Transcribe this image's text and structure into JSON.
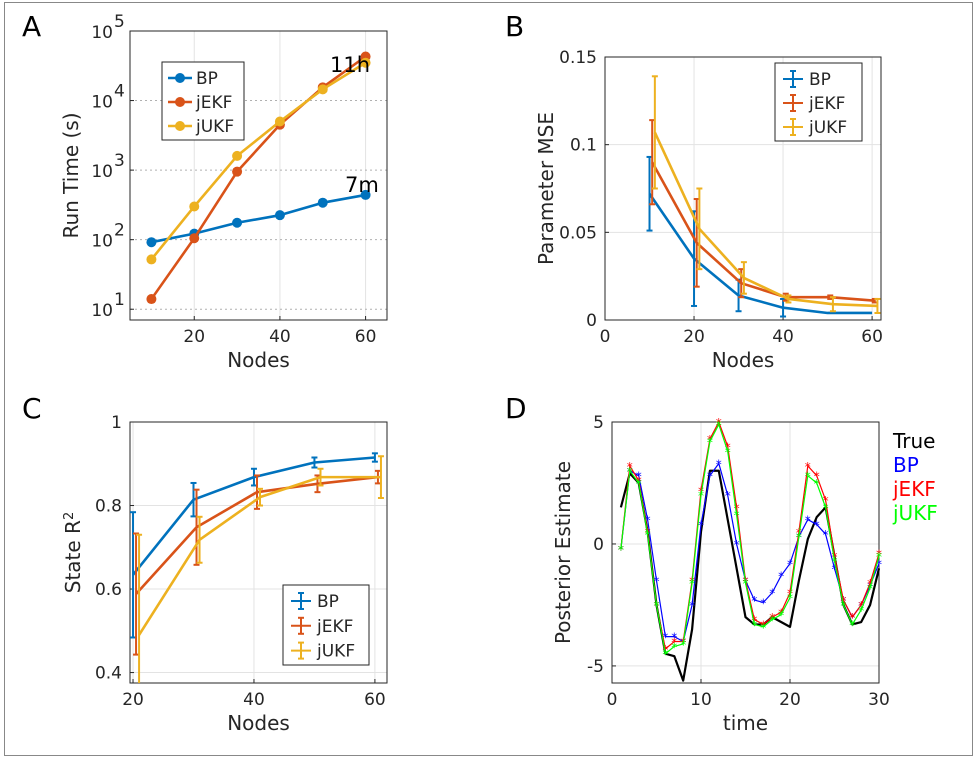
{
  "chart_data": [
    {
      "panel": "A",
      "type": "line",
      "xlabel": "Nodes",
      "ylabel": "Run Time (s)",
      "yscale": "log",
      "xlim": [
        5,
        65
      ],
      "ylim": [
        7,
        100000
      ],
      "xticks": [
        20,
        40,
        60
      ],
      "yticks": [
        10,
        100,
        1000,
        10000,
        100000
      ],
      "ytick_labels": [
        [
          "10",
          "1"
        ],
        [
          "10",
          "2"
        ],
        [
          "10",
          "3"
        ],
        [
          "10",
          "4"
        ],
        [
          "10",
          "5"
        ]
      ],
      "grid": "vertical + dotted minor on log decades",
      "legend": "top-left",
      "series": [
        {
          "name": "BP",
          "color": "#0072BD",
          "x": [
            10,
            20,
            30,
            40,
            50,
            60
          ],
          "y": [
            92,
            122,
            175,
            225,
            340,
            440
          ]
        },
        {
          "name": "jEKF",
          "color": "#D95319",
          "x": [
            10,
            20,
            30,
            40,
            50,
            60
          ],
          "y": [
            14,
            105,
            950,
            4500,
            15500,
            43000
          ]
        },
        {
          "name": "jUKF",
          "color": "#EDB120",
          "x": [
            10,
            20,
            30,
            40,
            50,
            60
          ],
          "y": [
            52,
            300,
            1600,
            5000,
            14500,
            35000
          ]
        }
      ],
      "annotations": [
        {
          "text": "11h",
          "x": 53,
          "y": 60000
        },
        {
          "text": "7m",
          "x": 54,
          "y": 700
        }
      ]
    },
    {
      "panel": "B",
      "type": "line",
      "xlabel": "Nodes",
      "ylabel": "Parameter MSE",
      "xlim": [
        0,
        62
      ],
      "ylim": [
        0,
        0.15
      ],
      "xticks": [
        0,
        20,
        40,
        60
      ],
      "yticks": [
        0,
        0.05,
        0.1,
        0.15
      ],
      "ytick_labels": [
        "0",
        "0.05",
        "0.1",
        "0.15"
      ],
      "grid": "on",
      "legend": "top-right",
      "series": [
        {
          "name": "BP",
          "color": "#0072BD",
          "x": [
            10,
            20,
            30,
            40,
            50,
            60
          ],
          "y": [
            0.072,
            0.035,
            0.014,
            0.007,
            0.004,
            0.004
          ],
          "err": [
            0.021,
            0.027,
            0.009,
            0.005,
            0,
            0
          ]
        },
        {
          "name": "jEKF",
          "color": "#D95319",
          "x": [
            10.6,
            20.6,
            30.6,
            40.6,
            50.6,
            60.6
          ],
          "y": [
            0.09,
            0.044,
            0.021,
            0.013,
            0.013,
            0.011
          ],
          "err": [
            0.024,
            0.025,
            0.008,
            0.002,
            0.001,
            0.001
          ]
        },
        {
          "name": "jUKF",
          "color": "#EDB120",
          "x": [
            11.2,
            21.2,
            31.2,
            41.2,
            51.2,
            61.2
          ],
          "y": [
            0.107,
            0.052,
            0.024,
            0.012,
            0.009,
            0.008
          ],
          "err": [
            0.032,
            0.023,
            0.009,
            0.002,
            0.004,
            0.004
          ]
        }
      ]
    },
    {
      "panel": "C",
      "type": "line",
      "xlabel": "Nodes",
      "ylabel": "State R",
      "ylabel_sup": "2",
      "xlim": [
        19.5,
        62
      ],
      "ylim": [
        0.375,
        1.0
      ],
      "xticks": [
        20,
        40,
        60
      ],
      "yticks": [
        0.4,
        0.6,
        0.8,
        1.0
      ],
      "ytick_labels": [
        "0.4",
        "0.6",
        "0.8",
        "1"
      ],
      "grid": "on",
      "legend": "bottom-right",
      "series": [
        {
          "name": "BP",
          "color": "#0072BD",
          "x": [
            20,
            30,
            40,
            50,
            60
          ],
          "y": [
            0.634,
            0.814,
            0.868,
            0.903,
            0.915
          ],
          "err": [
            0.15,
            0.04,
            0.02,
            0.012,
            0.01
          ]
        },
        {
          "name": "jEKF",
          "color": "#D95319",
          "x": [
            20.5,
            30.5,
            40.5,
            50.5,
            60.5
          ],
          "y": [
            0.588,
            0.748,
            0.832,
            0.852,
            0.868
          ],
          "err": [
            0.145,
            0.09,
            0.04,
            0.02,
            0.015
          ]
        },
        {
          "name": "jUKF",
          "color": "#EDB120",
          "x": [
            21,
            31,
            41,
            51,
            61
          ],
          "y": [
            0.49,
            0.718,
            0.82,
            0.868,
            0.868
          ],
          "err": [
            0.24,
            0.055,
            0.02,
            0.02,
            0.05
          ]
        }
      ]
    },
    {
      "panel": "D",
      "type": "line",
      "xlabel": "time",
      "ylabel": "Posterior Estimate",
      "xlim": [
        0,
        30
      ],
      "ylim": [
        -5.7,
        5
      ],
      "xticks": [
        0,
        10,
        20,
        30
      ],
      "yticks": [
        -5,
        0,
        5
      ],
      "ytick_labels": [
        "-5",
        "0",
        "5"
      ],
      "grid": "on",
      "legend": "outside-right",
      "series": [
        {
          "name": "True",
          "color": "#000000",
          "x": [
            1,
            2,
            3,
            4,
            5,
            6,
            7,
            8,
            9,
            10,
            11,
            12,
            13,
            14,
            15,
            16,
            17,
            18,
            19,
            20,
            21,
            22,
            23,
            24,
            25,
            26,
            27,
            28,
            29,
            30
          ],
          "y": [
            1.5,
            2.9,
            2.5,
            0.5,
            -2.5,
            -4.5,
            -4.6,
            -5.6,
            -3.5,
            0.5,
            3.0,
            3.0,
            1.0,
            -1.0,
            -3.0,
            -3.3,
            -3.3,
            -3.0,
            -3.2,
            -3.4,
            -1.5,
            0.2,
            1.1,
            1.5,
            -0.5,
            -2.5,
            -3.3,
            -3.2,
            -2.5,
            -1.0
          ]
        },
        {
          "name": "BP",
          "color": "#0000FF",
          "x": [
            1,
            2,
            3,
            4,
            5,
            6,
            7,
            8,
            9,
            10,
            11,
            12,
            13,
            14,
            15,
            16,
            17,
            18,
            19,
            20,
            21,
            22,
            23,
            24,
            25,
            26,
            27,
            28,
            29,
            30
          ],
          "y": [
            -0.2,
            3.0,
            2.8,
            1.0,
            -1.5,
            -3.8,
            -3.8,
            -4.0,
            -2.5,
            0.8,
            2.8,
            3.3,
            2.0,
            0.0,
            -1.5,
            -2.3,
            -2.4,
            -2.0,
            -1.3,
            -0.8,
            0.3,
            1.0,
            0.8,
            0.4,
            -1.0,
            -2.3,
            -3.0,
            -2.5,
            -1.7,
            -0.8
          ]
        },
        {
          "name": "jEKF",
          "color": "#FF0000",
          "x": [
            1,
            2,
            3,
            4,
            5,
            6,
            7,
            8,
            9,
            10,
            11,
            12,
            13,
            14,
            15,
            16,
            17,
            18,
            19,
            20,
            21,
            22,
            23,
            24,
            25,
            26,
            27,
            28,
            29,
            30
          ],
          "y": [
            -0.2,
            3.2,
            2.6,
            0.5,
            -2.5,
            -4.3,
            -4.0,
            -4.0,
            -1.5,
            2.2,
            4.3,
            5.0,
            4.0,
            1.5,
            -1.5,
            -3.1,
            -3.3,
            -3.0,
            -2.8,
            -2.0,
            0.5,
            3.2,
            2.8,
            1.8,
            -0.5,
            -2.3,
            -3.0,
            -2.5,
            -1.6,
            -0.4
          ]
        },
        {
          "name": "jUKF",
          "color": "#00FF00",
          "x": [
            1,
            2,
            3,
            4,
            5,
            6,
            7,
            8,
            9,
            10,
            11,
            12,
            13,
            14,
            15,
            16,
            17,
            18,
            19,
            20,
            21,
            22,
            23,
            24,
            25,
            26,
            27,
            28,
            29,
            30
          ],
          "y": [
            -0.2,
            3.0,
            2.5,
            0.4,
            -2.5,
            -4.5,
            -4.2,
            -4.1,
            -1.6,
            2.0,
            4.2,
            4.9,
            3.8,
            1.2,
            -1.6,
            -3.3,
            -3.4,
            -3.1,
            -2.9,
            -2.2,
            0.3,
            2.8,
            2.5,
            1.5,
            -0.7,
            -2.5,
            -3.3,
            -2.7,
            -1.8,
            -0.5
          ]
        }
      ]
    }
  ]
}
